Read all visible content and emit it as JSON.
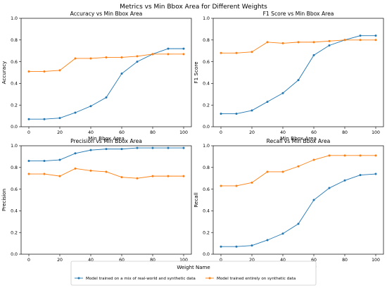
{
  "figure": {
    "suptitle": "Metrics vs Min Bbox Area for Different Weights"
  },
  "legend": {
    "title": "Weight Name",
    "placement": "bottom-center"
  },
  "series_styles": [
    {
      "color": "#1f77b4",
      "marker": "circle"
    },
    {
      "color": "#ff7f0e",
      "marker": "circle"
    }
  ],
  "chart_data": [
    {
      "type": "line",
      "title": "Accuracy vs Min Bbox Area",
      "xlabel": "Min Bbox Area",
      "ylabel": "Accuracy",
      "xlim": [
        -5,
        105
      ],
      "ylim": [
        0,
        1.0
      ],
      "xticks": [
        0,
        20,
        40,
        60,
        80,
        100
      ],
      "yticks": [
        0.0,
        0.2,
        0.4,
        0.6,
        0.8,
        1.0
      ],
      "x": [
        0,
        10,
        20,
        30,
        40,
        50,
        60,
        70,
        80,
        90,
        100
      ],
      "series": [
        {
          "name": "Model trained on a mix of real-world and synthetic data",
          "values": [
            0.07,
            0.07,
            0.08,
            0.13,
            0.19,
            0.27,
            0.49,
            0.6,
            0.67,
            0.72,
            0.72
          ]
        },
        {
          "name": "Model trained entirely on synthetic data",
          "values": [
            0.51,
            0.51,
            0.52,
            0.63,
            0.63,
            0.64,
            0.64,
            0.65,
            0.67,
            0.67,
            0.67
          ]
        }
      ],
      "grid": false
    },
    {
      "type": "line",
      "title": "F1 Score vs Min Bbox Area",
      "xlabel": "Min Bbox Area",
      "ylabel": "F1 Score",
      "xlim": [
        -5,
        105
      ],
      "ylim": [
        0,
        1.0
      ],
      "xticks": [
        0,
        20,
        40,
        60,
        80,
        100
      ],
      "yticks": [
        0.0,
        0.2,
        0.4,
        0.6,
        0.8,
        1.0
      ],
      "x": [
        0,
        10,
        20,
        30,
        40,
        50,
        60,
        70,
        80,
        90,
        100
      ],
      "series": [
        {
          "name": "Model trained on a mix of real-world and synthetic data",
          "values": [
            0.12,
            0.12,
            0.15,
            0.23,
            0.31,
            0.43,
            0.66,
            0.75,
            0.8,
            0.84,
            0.84
          ]
        },
        {
          "name": "Model trained entirely on synthetic data",
          "values": [
            0.68,
            0.68,
            0.69,
            0.78,
            0.77,
            0.78,
            0.78,
            0.79,
            0.8,
            0.8,
            0.8
          ]
        }
      ],
      "grid": false
    },
    {
      "type": "line",
      "title": "Precision vs Min Bbox Area",
      "xlabel": "Min Bbox Area",
      "ylabel": "Precision",
      "xlim": [
        -5,
        105
      ],
      "ylim": [
        0,
        1.0
      ],
      "xticks": [
        0,
        20,
        40,
        60,
        80,
        100
      ],
      "yticks": [
        0.0,
        0.2,
        0.4,
        0.6,
        0.8,
        1.0
      ],
      "x": [
        0,
        10,
        20,
        30,
        40,
        50,
        60,
        70,
        80,
        90,
        100
      ],
      "series": [
        {
          "name": "Model trained on a mix of real-world and synthetic data",
          "values": [
            0.86,
            0.86,
            0.87,
            0.93,
            0.96,
            0.97,
            0.97,
            0.98,
            0.98,
            0.98,
            0.98
          ]
        },
        {
          "name": "Model trained entirely on synthetic data",
          "values": [
            0.74,
            0.74,
            0.72,
            0.79,
            0.77,
            0.76,
            0.71,
            0.7,
            0.72,
            0.72,
            0.72
          ]
        }
      ],
      "grid": false
    },
    {
      "type": "line",
      "title": "Recall vs Min Bbox Area",
      "xlabel": "Min Bbox Area",
      "ylabel": "Recall",
      "xlim": [
        -5,
        105
      ],
      "ylim": [
        0,
        1.0
      ],
      "xticks": [
        0,
        20,
        40,
        60,
        80,
        100
      ],
      "yticks": [
        0.0,
        0.2,
        0.4,
        0.6,
        0.8,
        1.0
      ],
      "x": [
        0,
        10,
        20,
        30,
        40,
        50,
        60,
        70,
        80,
        90,
        100
      ],
      "series": [
        {
          "name": "Model trained on a mix of real-world and synthetic data",
          "values": [
            0.07,
            0.07,
            0.08,
            0.13,
            0.19,
            0.28,
            0.5,
            0.61,
            0.68,
            0.73,
            0.74
          ]
        },
        {
          "name": "Model trained entirely on synthetic data",
          "values": [
            0.63,
            0.63,
            0.66,
            0.76,
            0.76,
            0.81,
            0.87,
            0.91,
            0.91,
            0.91,
            0.91
          ]
        }
      ],
      "grid": false
    }
  ]
}
